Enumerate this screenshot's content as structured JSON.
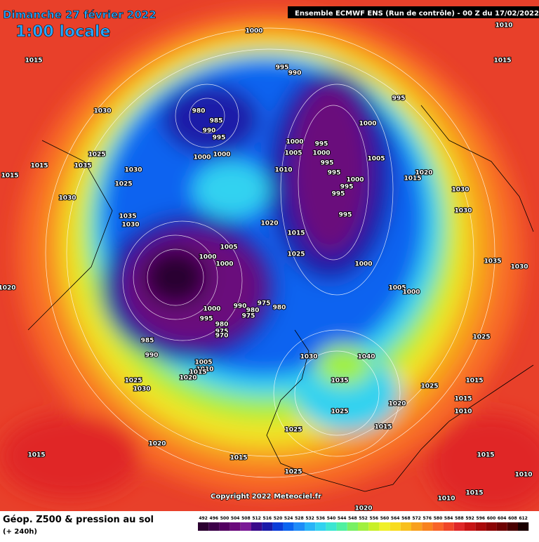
{
  "header": {
    "date": "Dimanche 27 février 2022",
    "time": "1:00 locale",
    "run": "Ensemble ECMWF ENS  (Run de contrôle)  -  00 Z du 17/02/2022"
  },
  "copyright": "Copyright 2022 Meteociel.fr",
  "footer": {
    "title": "Géop. Z500 & pression au sol",
    "subtitle": "(+ 240h)"
  },
  "colorbar": {
    "values": [
      492,
      496,
      500,
      504,
      508,
      512,
      516,
      520,
      524,
      528,
      532,
      536,
      540,
      544,
      548,
      552,
      556,
      560,
      564,
      568,
      572,
      576,
      580,
      584,
      588,
      592,
      596,
      600,
      604,
      608,
      612
    ],
    "colors": [
      "#2b0030",
      "#3c0048",
      "#520060",
      "#6a0a7c",
      "#7a1a96",
      "#3a0a8a",
      "#1a1aa8",
      "#0a3cd8",
      "#0a64f0",
      "#1e8cf8",
      "#28b4f8",
      "#32d2f0",
      "#3ce6d2",
      "#50f0a0",
      "#78f064",
      "#a0f040",
      "#c8f028",
      "#f0f028",
      "#f8dc1e",
      "#f8c01e",
      "#f8a01e",
      "#f8821e",
      "#f86428",
      "#f04628",
      "#e02828",
      "#c81414",
      "#aa0a0a",
      "#8c0505",
      "#6e0202",
      "#4a0000",
      "#1a0000"
    ]
  },
  "isobar_labels": [
    "1000",
    "995",
    "990",
    "1010",
    "1015",
    "1015",
    "1030",
    "980",
    "985",
    "990",
    "995",
    "1000",
    "1000",
    "995",
    "1000",
    "1000",
    "995",
    "1005",
    "1000",
    "995",
    "1010",
    "1005",
    "1020",
    "1015",
    "995",
    "1000",
    "995",
    "995",
    "995",
    "1030",
    "1025",
    "1035",
    "1030",
    "1025",
    "1015",
    "1015",
    "1030",
    "1035",
    "1030",
    "1020",
    "1015",
    "1025",
    "1005",
    "1000",
    "1000",
    "1000",
    "1005",
    "1000",
    "990",
    "975",
    "980",
    "980",
    "975",
    "1000",
    "995",
    "980",
    "975",
    "970",
    "985",
    "990",
    "1005",
    "1010",
    "1015",
    "1020",
    "1025",
    "1030",
    "1030",
    "1040",
    "1035",
    "1025",
    "1020",
    "1025",
    "1015",
    "1025",
    "1020",
    "1015",
    "1015",
    "1025",
    "1020",
    "1015",
    "1015",
    "1010",
    "1015",
    "1010",
    "1015",
    "1010",
    "1020",
    "1030",
    "1035",
    "1025",
    "1030"
  ]
}
